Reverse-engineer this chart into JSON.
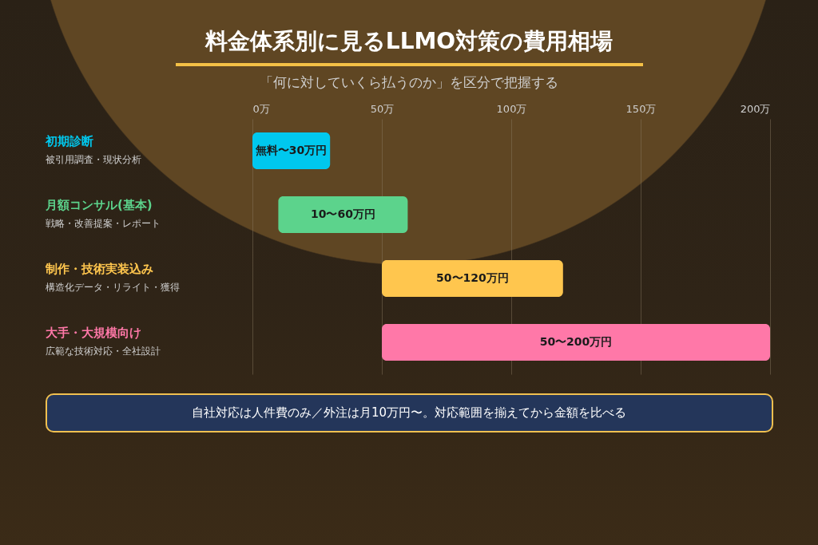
{
  "chart_data": {
    "type": "bar",
    "orientation": "horizontal",
    "title": "料金体系別に見るLLMO対策の費用相場",
    "subtitle": "「何に対していくら払うのか」を区分で把握する",
    "categories": [
      "初期診断",
      "月額コンサル(基本)",
      "制作・技術実装込み",
      "大手・大規模向け"
    ],
    "base": [
      0,
      10,
      50,
      50
    ],
    "values": [
      30,
      50,
      70,
      150
    ],
    "colors": [
      "#00c8ee",
      "#5cd38c",
      "#ffc64e",
      "#ff78a8"
    ],
    "xlim": [
      0,
      200
    ],
    "xticks": [
      {
        "value": 0,
        "label": "0万"
      },
      {
        "value": 50,
        "label": "50万"
      },
      {
        "value": 100,
        "label": "100万"
      },
      {
        "value": 150,
        "label": "150万"
      },
      {
        "value": 200,
        "label": "200万"
      }
    ],
    "grid": "x",
    "annotations": [
      "被引用調査・現状分析",
      "無料〜30万円",
      "戦略・改善提案・レポート",
      "10〜60万円",
      "構造化データ・リライト・獲得",
      "50〜120万円",
      "広範な技術対応・全社設計",
      "50〜200万円",
      "自社対応は人件費のみ／外注は月10万円〜。対応範囲を揃えてから金額を比べる"
    ]
  }
}
